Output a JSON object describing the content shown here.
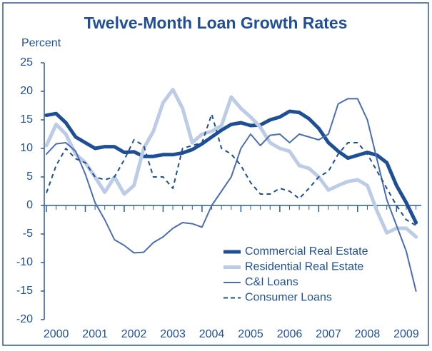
{
  "chart_data": {
    "type": "line",
    "title": "Twelve-Month Loan Growth Rates",
    "y_label": "Percent",
    "x": [
      2000,
      2000.25,
      2000.5,
      2000.75,
      2001,
      2001.25,
      2001.5,
      2001.75,
      2002,
      2002.25,
      2002.5,
      2002.75,
      2003,
      2003.25,
      2003.5,
      2003.75,
      2004,
      2004.25,
      2004.5,
      2004.75,
      2005,
      2005.25,
      2005.5,
      2005.75,
      2006,
      2006.25,
      2006.5,
      2006.75,
      2007,
      2007.25,
      2007.5,
      2007.75,
      2008,
      2008.25,
      2008.5,
      2008.75,
      2009,
      2009.25,
      2009.5
    ],
    "series": [
      {
        "name": "Commercial Real Estate",
        "color": "#1d4f96",
        "width": 5,
        "dash": false,
        "values": [
          15.8,
          16.1,
          14.5,
          12,
          11,
          10,
          10.3,
          10.3,
          9.3,
          9.4,
          8.6,
          8.6,
          8.9,
          8.9,
          9.2,
          9.8,
          10.8,
          12,
          13.2,
          14.2,
          14.5,
          14,
          14.1,
          15,
          15.5,
          16.5,
          16.3,
          15.2,
          13.5,
          11,
          9.5,
          8.3,
          8.8,
          9.3,
          8.8,
          7.5,
          3.5,
          0.5,
          -3
        ]
      },
      {
        "name": "Residential Real Estate",
        "color": "#bccbe6",
        "width": 5,
        "dash": false,
        "values": [
          10.5,
          14.2,
          12.5,
          9,
          7.5,
          5,
          2.3,
          5,
          2,
          3.5,
          10,
          13,
          18,
          20.3,
          17,
          11,
          12.5,
          13,
          14,
          19,
          17,
          15.5,
          13.7,
          11,
          10,
          9.5,
          7,
          6.5,
          5,
          2.7,
          3.5,
          4.2,
          4.5,
          3.5,
          -1,
          -4.8,
          -4,
          -4,
          -5.5
        ]
      },
      {
        "name": "C&I Loans",
        "color": "#4a6db3",
        "width": 2,
        "dash": false,
        "values": [
          9,
          10.8,
          11,
          9.5,
          5.5,
          0.5,
          -2.5,
          -6,
          -7,
          -8.3,
          -8.2,
          -6.5,
          -5.5,
          -4,
          -3,
          -3.2,
          -3.8,
          0,
          2.5,
          5,
          10,
          12.5,
          10.5,
          12.3,
          12.5,
          11,
          12.5,
          12,
          11.5,
          12.5,
          17.8,
          18.7,
          18.7,
          15,
          8,
          1,
          -3.5,
          -8,
          -15
        ]
      },
      {
        "name": "Consumer Loans",
        "color": "#1d4f96",
        "width": 2,
        "dash": true,
        "values": [
          2.2,
          7,
          10,
          8.2,
          7.5,
          5,
          4.5,
          5,
          8,
          11.5,
          10.5,
          5,
          5,
          3,
          10,
          10.5,
          11,
          16,
          10,
          9,
          7,
          4,
          2,
          2,
          3,
          2.5,
          1.2,
          3,
          5,
          6,
          9,
          11,
          11,
          9,
          6,
          3,
          0,
          -2.5,
          -3.5
        ]
      }
    ],
    "xlim": [
      2000,
      2009.6
    ],
    "xticks": [
      2000,
      2001,
      2002,
      2003,
      2004,
      2005,
      2006,
      2007,
      2008,
      2009
    ],
    "ylim": [
      -20,
      25
    ],
    "yticks": [
      25,
      20,
      15,
      10,
      5,
      0,
      -5,
      -10,
      -15,
      -20
    ]
  }
}
